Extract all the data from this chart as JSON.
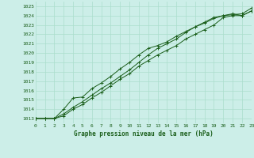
{
  "title": "Graphe pression niveau de la mer (hPa)",
  "bg_color": "#cceee8",
  "grid_color": "#aaddcc",
  "line_color": "#1a5e1a",
  "xlim": [
    0,
    23
  ],
  "ylim": [
    1012.5,
    1025.5
  ],
  "yticks": [
    1013,
    1014,
    1015,
    1016,
    1017,
    1018,
    1019,
    1020,
    1021,
    1022,
    1023,
    1024,
    1025
  ],
  "xticks": [
    0,
    1,
    2,
    3,
    4,
    5,
    6,
    7,
    8,
    9,
    10,
    11,
    12,
    13,
    14,
    15,
    16,
    17,
    18,
    19,
    20,
    21,
    22,
    23
  ],
  "series": [
    [
      1013.0,
      1013.0,
      1013.0,
      1013.3,
      1014.0,
      1014.5,
      1015.2,
      1015.8,
      1016.5,
      1017.2,
      1017.8,
      1018.6,
      1019.2,
      1019.8,
      1020.3,
      1020.8,
      1021.5,
      1022.0,
      1022.5,
      1023.0,
      1023.8,
      1024.0,
      1024.0,
      1024.5
    ],
    [
      1013.0,
      1013.0,
      1013.0,
      1014.0,
      1015.2,
      1015.3,
      1016.2,
      1016.8,
      1017.5,
      1018.3,
      1019.0,
      1019.8,
      1020.5,
      1020.8,
      1021.2,
      1021.8,
      1022.3,
      1022.8,
      1023.3,
      1023.8,
      1024.0,
      1024.2,
      1024.0,
      1024.5
    ],
    [
      1013.0,
      1013.0,
      1013.0,
      1013.5,
      1014.2,
      1014.8,
      1015.5,
      1016.2,
      1016.8,
      1017.5,
      1018.2,
      1019.0,
      1019.8,
      1020.5,
      1021.0,
      1021.5,
      1022.2,
      1022.8,
      1023.2,
      1023.7,
      1024.0,
      1024.1,
      1024.2,
      1024.8
    ]
  ]
}
